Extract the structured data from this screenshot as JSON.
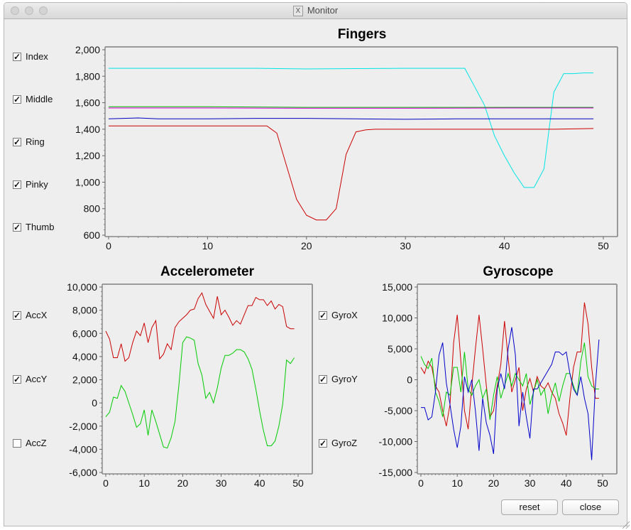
{
  "window": {
    "title": "Monitor"
  },
  "fingers_checkboxes": [
    {
      "label": "Index",
      "checked": true
    },
    {
      "label": "Middle",
      "checked": true
    },
    {
      "label": "Ring",
      "checked": true
    },
    {
      "label": "Pinky",
      "checked": true
    },
    {
      "label": "Thumb",
      "checked": true
    }
  ],
  "accel_checkboxes": [
    {
      "label": "AccX",
      "checked": true
    },
    {
      "label": "AccY",
      "checked": true
    },
    {
      "label": "AccZ",
      "checked": false
    }
  ],
  "gyro_checkboxes": [
    {
      "label": "GyroX",
      "checked": true
    },
    {
      "label": "GyroY",
      "checked": true
    },
    {
      "label": "GyroZ",
      "checked": true
    }
  ],
  "buttons": {
    "reset": "reset",
    "close": "close"
  },
  "chart_data": [
    {
      "type": "line",
      "title": "Fingers",
      "xlim": [
        0,
        50
      ],
      "ylim": [
        600,
        2000
      ],
      "xticks": [
        0,
        10,
        20,
        30,
        40,
        50
      ],
      "yticks": [
        "600",
        "800",
        "1,000",
        "1,200",
        "1,400",
        "1,600",
        "1,800",
        "2,000"
      ],
      "grid": false,
      "series": [
        {
          "color": "#00e5e5",
          "x": [
            0,
            5,
            10,
            15,
            20,
            25,
            30,
            35,
            36,
            37,
            38,
            39,
            40,
            41,
            42,
            43,
            44,
            45,
            46,
            47,
            48,
            49
          ],
          "y": [
            1860,
            1860,
            1860,
            1860,
            1855,
            1858,
            1860,
            1860,
            1860,
            1720,
            1580,
            1350,
            1200,
            1070,
            960,
            960,
            1100,
            1680,
            1820,
            1820,
            1825,
            1825
          ]
        },
        {
          "color": "#00b000",
          "x": [
            0,
            10,
            20,
            30,
            40,
            49
          ],
          "y": [
            1570,
            1570,
            1565,
            1565,
            1565,
            1565
          ]
        },
        {
          "color": "#e000e0",
          "x": [
            0,
            10,
            20,
            30,
            40,
            49
          ],
          "y": [
            1560,
            1560,
            1558,
            1558,
            1560,
            1560
          ]
        },
        {
          "color": "#0000c0",
          "x": [
            0,
            3,
            5,
            10,
            15,
            20,
            25,
            30,
            35,
            40,
            45,
            49
          ],
          "y": [
            1478,
            1485,
            1478,
            1478,
            1482,
            1482,
            1478,
            1475,
            1478,
            1478,
            1478,
            1478
          ]
        },
        {
          "color": "#cc0000",
          "x": [
            0,
            5,
            10,
            15,
            16,
            17,
            18,
            19,
            20,
            21,
            22,
            23,
            24,
            25,
            26,
            27,
            30,
            35,
            40,
            45,
            49
          ],
          "y": [
            1425,
            1425,
            1425,
            1425,
            1425,
            1370,
            1120,
            870,
            750,
            715,
            715,
            800,
            1210,
            1380,
            1395,
            1400,
            1400,
            1400,
            1400,
            1400,
            1405
          ]
        }
      ]
    },
    {
      "type": "line",
      "title": "Accelerometer",
      "xlim": [
        0,
        50
      ],
      "ylim": [
        -6000,
        10000
      ],
      "xticks": [
        0,
        10,
        20,
        30,
        40,
        50
      ],
      "yticks": [
        "-6,000",
        "-4,000",
        "-2,000",
        "0",
        "2,000",
        "4,000",
        "6,000",
        "8,000",
        "10,000"
      ],
      "grid": false,
      "series": [
        {
          "color": "#cc0000",
          "x": [
            0,
            1,
            2,
            3,
            4,
            5,
            6,
            7,
            8,
            9,
            10,
            11,
            12,
            13,
            14,
            15,
            16,
            17,
            18,
            19,
            20,
            21,
            22,
            23,
            24,
            25,
            26,
            27,
            28,
            29,
            30,
            31,
            32,
            33,
            34,
            35,
            36,
            37,
            38,
            39,
            40,
            41,
            42,
            43,
            44,
            45,
            46,
            47,
            48,
            49
          ],
          "y": [
            6200,
            5500,
            3900,
            3900,
            5100,
            3600,
            3900,
            5200,
            6200,
            5800,
            6900,
            5200,
            6500,
            7100,
            3800,
            4200,
            5100,
            4600,
            6500,
            7000,
            7300,
            7600,
            8000,
            8100,
            9000,
            9500,
            8500,
            7900,
            7300,
            9200,
            7600,
            8000,
            7400,
            6700,
            7100,
            6800,
            7600,
            8400,
            8400,
            9100,
            8900,
            8900,
            8400,
            8800,
            8100,
            8500,
            8300,
            6600,
            6400,
            6400
          ]
        },
        {
          "color": "#00cc00",
          "x": [
            0,
            1,
            2,
            3,
            4,
            5,
            6,
            7,
            8,
            9,
            10,
            11,
            12,
            13,
            14,
            15,
            16,
            17,
            18,
            19,
            20,
            21,
            22,
            23,
            24,
            25,
            26,
            27,
            28,
            29,
            30,
            31,
            32,
            33,
            34,
            35,
            36,
            37,
            38,
            39,
            40,
            41,
            42,
            43,
            44,
            45,
            46,
            47,
            48,
            49
          ],
          "y": [
            -1200,
            -800,
            500,
            400,
            1500,
            1000,
            0,
            -1000,
            -2100,
            -1800,
            -600,
            -2800,
            -600,
            -1600,
            -2700,
            -3800,
            -3900,
            -3000,
            -1600,
            1500,
            5200,
            5700,
            5600,
            5400,
            3400,
            2400,
            400,
            900,
            0,
            1300,
            3000,
            4100,
            4100,
            4300,
            4600,
            4600,
            4400,
            3800,
            2900,
            1200,
            -700,
            -2400,
            -3700,
            -3700,
            -3300,
            -2000,
            -100,
            3700,
            3400,
            3900
          ]
        }
      ]
    },
    {
      "type": "line",
      "title": "Gyroscope",
      "xlim": [
        0,
        50
      ],
      "ylim": [
        -15000,
        15000
      ],
      "xticks": [
        0,
        10,
        20,
        30,
        40,
        50
      ],
      "yticks": [
        "-15,000",
        "-10,000",
        "-5,000",
        "0",
        "5,000",
        "10,000",
        "15,000"
      ],
      "grid": false,
      "series": [
        {
          "color": "#cc0000",
          "x": [
            0,
            1,
            2,
            3,
            4,
            5,
            6,
            7,
            8,
            9,
            10,
            11,
            12,
            13,
            14,
            15,
            16,
            17,
            18,
            19,
            20,
            21,
            22,
            23,
            24,
            25,
            26,
            27,
            28,
            29,
            30,
            31,
            32,
            33,
            34,
            35,
            36,
            37,
            38,
            39,
            40,
            41,
            42,
            43,
            44,
            45,
            46,
            47,
            48,
            49
          ],
          "y": [
            2000,
            1000,
            3000,
            2000,
            -1000,
            -2000,
            -5000,
            -7500,
            -4000,
            6000,
            10500,
            3000,
            -5000,
            -8000,
            -1000,
            5000,
            10500,
            5000,
            -1000,
            -6000,
            -5000,
            -1000,
            2500,
            9500,
            3500,
            -2000,
            0,
            2000,
            -5000,
            -1500,
            200,
            -2000,
            500,
            -1000,
            -1500,
            -500,
            -2000,
            -3000,
            -5500,
            -7000,
            -9000,
            -3000,
            2000,
            4500,
            4500,
            12500,
            9000,
            2000,
            -3000,
            -3000
          ]
        },
        {
          "color": "#00cc00",
          "x": [
            0,
            1,
            2,
            3,
            4,
            5,
            6,
            7,
            8,
            9,
            10,
            11,
            12,
            13,
            14,
            15,
            16,
            17,
            18,
            19,
            20,
            21,
            22,
            23,
            24,
            25,
            26,
            27,
            28,
            29,
            30,
            31,
            32,
            33,
            34,
            35,
            36,
            37,
            38,
            39,
            40,
            41,
            42,
            43,
            44,
            45,
            46,
            47,
            48,
            49
          ],
          "y": [
            3800,
            2500,
            1800,
            3500,
            -2000,
            -3500,
            -6000,
            -2000,
            -2500,
            2000,
            2000,
            -2000,
            4500,
            -1500,
            -2500,
            -1000,
            0,
            -3000,
            -1500,
            -6500,
            -2500,
            500,
            -3000,
            -1000,
            1000,
            -1000,
            1000,
            0,
            -1000,
            1000,
            -4000,
            -2000,
            0,
            -2500,
            -1500,
            -5500,
            -2500,
            -500,
            -3500,
            -1000,
            1000,
            1000,
            -1000,
            -2500,
            3000,
            6000,
            500,
            -1000,
            -1500,
            -1500
          ]
        },
        {
          "color": "#0000cc",
          "x": [
            0,
            1,
            2,
            3,
            4,
            5,
            6,
            7,
            8,
            9,
            10,
            11,
            12,
            13,
            14,
            15,
            16,
            17,
            18,
            19,
            20,
            21,
            22,
            23,
            24,
            25,
            26,
            27,
            28,
            29,
            30,
            31,
            32,
            33,
            34,
            35,
            36,
            37,
            38,
            39,
            40,
            41,
            42,
            43,
            44,
            45,
            46,
            47,
            48,
            49
          ],
          "y": [
            -4500,
            -4500,
            -6500,
            -6000,
            -2000,
            4000,
            6000,
            -500,
            -4000,
            -8000,
            -11000,
            -7500,
            500,
            -2000,
            0,
            -5000,
            -11500,
            -3000,
            -7000,
            -9000,
            -12000,
            -1500,
            1000,
            -1500,
            5000,
            8500,
            4000,
            -7500,
            -2000,
            -6000,
            -9500,
            -1500,
            -1500,
            -500,
            500,
            1500,
            2500,
            4500,
            4500,
            4000,
            4500,
            1000,
            -1500,
            -2500,
            500,
            -3000,
            -5500,
            -13000,
            -1000,
            6500
          ]
        }
      ]
    }
  ]
}
